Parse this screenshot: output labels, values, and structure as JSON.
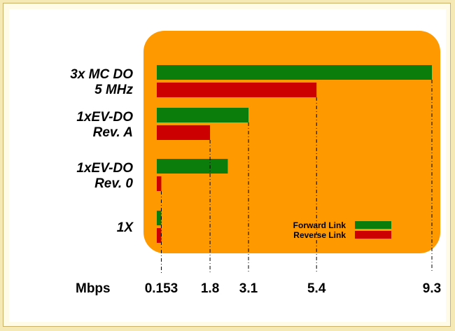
{
  "chart_data": {
    "type": "bar",
    "orientation": "horizontal",
    "unit_label": "Mbps",
    "categories": [
      [
        "3x MC DO",
        "5 MHz"
      ],
      [
        "1xEV-DO",
        "Rev. A"
      ],
      [
        "1xEV-DO",
        "Rev. 0"
      ],
      [
        "1X"
      ]
    ],
    "series": [
      {
        "name": "Forward Link",
        "color": "#0a7d0a",
        "values": [
          9.3,
          3.1,
          2.4,
          0.153
        ]
      },
      {
        "name": "Reverse Link",
        "color": "#cc0000",
        "values": [
          5.4,
          1.8,
          0.153,
          0.153
        ]
      }
    ],
    "tick_values": [
      0.153,
      1.8,
      3.1,
      5.4,
      9.3
    ],
    "tick_labels": [
      "0.153",
      "1.8",
      "3.1",
      "5.4",
      "9.3"
    ],
    "xlim": [
      0,
      9.3
    ],
    "legend_position": "bottom-right",
    "plot_background": "#ff9900",
    "grid": false
  }
}
